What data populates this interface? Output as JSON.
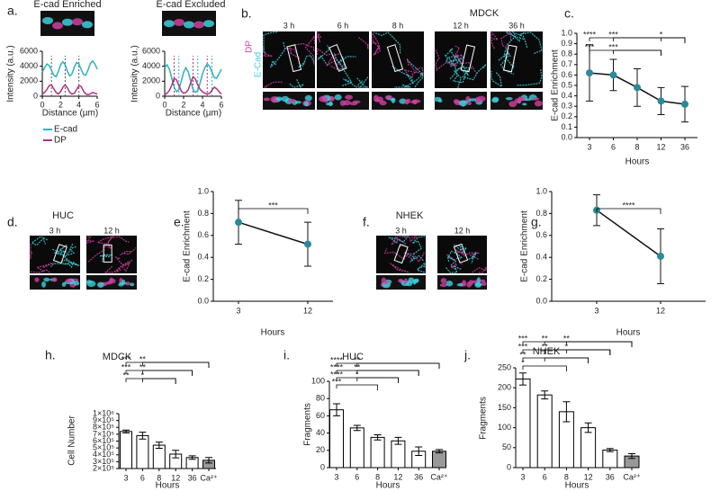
{
  "chart_data": [
    {
      "type": "line",
      "panel": "a.",
      "title": "E-cad Enriched",
      "x_label": "Distance (µm)",
      "y_label": "Intensity (a.u.)",
      "x": [
        0,
        0.25,
        0.5,
        0.75,
        1,
        1.25,
        1.5,
        1.75,
        2,
        2.25,
        2.5,
        2.75,
        3,
        3.25,
        3.5,
        3.75,
        4,
        4.25,
        4.5,
        4.75,
        5,
        5.25,
        5.5,
        5.75,
        6
      ],
      "series": [
        {
          "name": "E-cad",
          "color": "#2bb3c0",
          "values": [
            3200,
            3800,
            4300,
            4100,
            3500,
            2800,
            2600,
            3300,
            4200,
            4600,
            4200,
            3300,
            2700,
            3000,
            3900,
            4500,
            4300,
            3600,
            2900,
            2800,
            3500,
            4400,
            4700,
            4300,
            3600
          ]
        },
        {
          "name": "DP",
          "color": "#b2307e",
          "values": [
            300,
            500,
            900,
            1400,
            1500,
            1000,
            500,
            300,
            600,
            1200,
            1500,
            1100,
            500,
            300,
            400,
            900,
            1400,
            1300,
            700,
            300,
            200,
            300,
            500,
            400,
            300
          ]
        }
      ],
      "guides": [
        {
          "x": 1,
          "color": "#555555"
        },
        {
          "x": 2.5,
          "color": "#555555"
        },
        {
          "x": 4,
          "color": "#555555"
        }
      ],
      "xlim": [
        0,
        6
      ],
      "xticks": [
        0,
        2,
        4,
        6
      ],
      "ylim": [
        0,
        6000
      ],
      "yticks": [
        0,
        2000,
        4000,
        6000
      ]
    },
    {
      "type": "line",
      "title": "E-cad Excluded",
      "x_label": "Distance (µm)",
      "y_label": "Intensity (a.u.)",
      "x": [
        0,
        0.25,
        0.5,
        0.75,
        1,
        1.25,
        1.5,
        1.75,
        2,
        2.25,
        2.5,
        2.75,
        3,
        3.25,
        3.5,
        3.75,
        4,
        4.25,
        4.5,
        4.75,
        5,
        5.25,
        5.5,
        5.75,
        6
      ],
      "series": [
        {
          "color": "#2bb3c0",
          "values": [
            3800,
            4200,
            3600,
            2400,
            1200,
            600,
            900,
            2000,
            3200,
            3800,
            3200,
            2000,
            900,
            500,
            800,
            1800,
            3000,
            3800,
            4300,
            4000,
            3200,
            2500,
            2400,
            3000,
            3600
          ]
        },
        {
          "color": "#b2307e",
          "values": [
            200,
            400,
            800,
            1500,
            2400,
            2200,
            1400,
            700,
            400,
            500,
            900,
            1800,
            2600,
            2300,
            1500,
            900,
            600,
            400,
            300,
            400,
            800,
            1200,
            1000,
            600,
            300
          ]
        }
      ],
      "guides": [
        {
          "x": 1,
          "color": "#b2307e"
        },
        {
          "x": 1.5,
          "color": "#2bb3c0"
        },
        {
          "x": 3,
          "color": "#b2307e"
        },
        {
          "x": 3.5,
          "color": "#2bb3c0"
        },
        {
          "x": 4.5,
          "color": "#b2307e"
        },
        {
          "x": 5,
          "color": "#2bb3c0"
        }
      ],
      "xlim": [
        0,
        6
      ],
      "xticks": [
        0,
        2,
        4,
        6
      ],
      "ylim": [
        0,
        6000
      ],
      "yticks": [
        0,
        2000,
        4000,
        6000
      ]
    },
    {
      "type": "line",
      "panel": "c.",
      "x_label": "Hours",
      "y_label": "E-cad Enrichment",
      "color": "#2a8a9a",
      "categories": [
        "3",
        "6",
        "8",
        "12",
        "36"
      ],
      "values": [
        0.62,
        0.6,
        0.48,
        0.35,
        0.32
      ],
      "errors": [
        0.27,
        0.15,
        0.18,
        0.13,
        0.17
      ],
      "ylim": [
        0,
        1
      ],
      "yticks": [
        {
          "value": 0,
          "label": "0.0"
        },
        0.1,
        0.2,
        0.3,
        0.4,
        0.5,
        0.6,
        0.7,
        0.8,
        0.9,
        {
          "value": 1,
          "label": "1.0"
        }
      ],
      "annotations": [
        {
          "text": "****",
          "categories": [
            "3",
            "36"
          ]
        },
        {
          "text": "***",
          "categories": [
            "6",
            "36"
          ]
        },
        {
          "text": "*",
          "categories": [
            "12",
            "36"
          ]
        },
        {
          "text": "***",
          "categories": [
            "3",
            "12"
          ]
        },
        {
          "text": "***",
          "categories": [
            "6",
            "12"
          ]
        }
      ]
    },
    {
      "type": "line",
      "panel": "e.",
      "x_label": "Hours",
      "y_label": "E-cad Enrichment",
      "color": "#2a8a9a",
      "categories": [
        "3",
        "12"
      ],
      "values": [
        0.72,
        0.52
      ],
      "errors": [
        0.2,
        0.2
      ],
      "ylim": [
        0,
        1
      ],
      "yticks": [
        {
          "value": 0,
          "label": "0.0"
        },
        0.2,
        0.4,
        0.6,
        0.8,
        {
          "value": 1,
          "label": "1.0"
        }
      ],
      "annotations": [
        {
          "text": "***",
          "categories": [
            "3",
            "12"
          ]
        }
      ]
    },
    {
      "type": "line",
      "panel": "g.",
      "x_label": "Hours",
      "y_label": "E-cad Enrichment",
      "color": "#2a8a9a",
      "categories": [
        "3",
        "12"
      ],
      "values": [
        0.83,
        0.41
      ],
      "errors": [
        0.14,
        0.25
      ],
      "ylim": [
        0,
        1
      ],
      "yticks": [
        {
          "value": 0,
          "label": "0.0"
        },
        0.2,
        0.4,
        0.6,
        0.8,
        {
          "value": 1,
          "label": "1.0"
        }
      ],
      "annotations": [
        {
          "text": "****",
          "categories": [
            "3",
            "12"
          ]
        }
      ]
    },
    {
      "type": "bar",
      "panel": "h.",
      "title": "MDCK",
      "x_label": "Hours",
      "y_label": "Cell Number",
      "categories": [
        "3",
        "6",
        "8",
        "12",
        "36",
        "Ca²⁺"
      ],
      "values": [
        740000,
        680000,
        540000,
        410000,
        360000,
        320000
      ],
      "errors": [
        20000,
        50000,
        45000,
        55000,
        25000,
        40000
      ],
      "colors": [
        "#ffffff",
        "#ffffff",
        "#ffffff",
        "#ffffff",
        "#ffffff",
        "#999999"
      ],
      "ylim": [
        200000,
        1000000
      ],
      "yticks": [
        {
          "value": 200000,
          "label": "2×10⁵"
        },
        {
          "value": 300000,
          "label": "3×10⁵"
        },
        {
          "value": 400000,
          "label": "4×10⁵"
        },
        {
          "value": 500000,
          "label": "5×10⁵"
        },
        {
          "value": 600000,
          "label": "6×10⁵"
        },
        {
          "value": 700000,
          "label": "7×10⁵"
        },
        {
          "value": 800000,
          "label": "8×10⁵"
        },
        {
          "value": 900000,
          "label": "9×10⁵"
        },
        {
          "value": 1000000,
          "label": "1×10⁶"
        }
      ],
      "annotations": [
        {
          "text": "***",
          "categories": [
            "3",
            "Ca²⁺"
          ]
        },
        {
          "text": "**",
          "categories": [
            "6",
            "Ca²⁺"
          ]
        },
        {
          "text": "***",
          "categories": [
            "3",
            "36"
          ]
        },
        {
          "text": "**",
          "categories": [
            "6",
            "36"
          ]
        },
        {
          "text": "**",
          "categories": [
            "3",
            "12"
          ]
        },
        {
          "text": "*",
          "categories": [
            "6",
            "12"
          ]
        }
      ]
    },
    {
      "type": "bar",
      "panel": "i.",
      "title": "HUC",
      "x_label": "Hours",
      "y_label": "Fragments",
      "categories": [
        "3",
        "6",
        "8",
        "12",
        "36",
        "Ca²⁺"
      ],
      "values": [
        67,
        46,
        35,
        31,
        19,
        19
      ],
      "errors": [
        7,
        3,
        3,
        4,
        5,
        2
      ],
      "colors": [
        "#ffffff",
        "#ffffff",
        "#ffffff",
        "#ffffff",
        "#ffffff",
        "#999999"
      ],
      "ylim": [
        0,
        100
      ],
      "yticks": [
        0,
        20,
        40,
        60,
        80,
        100
      ],
      "annotations": [
        {
          "text": "****",
          "categories": [
            "3",
            "Ca²⁺"
          ]
        },
        {
          "text": "**",
          "categories": [
            "6",
            "Ca²⁺"
          ]
        },
        {
          "text": "****",
          "categories": [
            "3",
            "36"
          ]
        },
        {
          "text": "**",
          "categories": [
            "6",
            "36"
          ]
        },
        {
          "text": "****",
          "categories": [
            "3",
            "12"
          ]
        },
        {
          "text": "*",
          "categories": [
            "6",
            "12"
          ]
        },
        {
          "text": "***",
          "categories": [
            "3",
            "8"
          ]
        }
      ]
    },
    {
      "type": "bar",
      "panel": "j.",
      "title": "NHEK",
      "x_label": "Hours",
      "y_label": "Fragments",
      "categories": [
        "3",
        "6",
        "8",
        "12",
        "36",
        "Ca²⁺"
      ],
      "values": [
        222,
        182,
        140,
        100,
        44,
        29
      ],
      "errors": [
        15,
        10,
        25,
        12,
        4,
        6
      ],
      "colors": [
        "#ffffff",
        "#ffffff",
        "#ffffff",
        "#ffffff",
        "#ffffff",
        "#999999"
      ],
      "ylim": [
        0,
        250
      ],
      "yticks": [
        0,
        50,
        100,
        150,
        200,
        250
      ],
      "annotations": [
        {
          "text": "***",
          "categories": [
            "3",
            "Ca²⁺"
          ]
        },
        {
          "text": "**",
          "categories": [
            "6",
            "Ca²⁺"
          ]
        },
        {
          "text": "**",
          "categories": [
            "8",
            "Ca²⁺"
          ]
        },
        {
          "text": "***",
          "categories": [
            "3",
            "36"
          ]
        },
        {
          "text": "**",
          "categories": [
            "6",
            "36"
          ]
        },
        {
          "text": "*",
          "categories": [
            "8",
            "36"
          ]
        },
        {
          "text": "**",
          "categories": [
            "3",
            "12"
          ]
        },
        {
          "text": "*",
          "categories": [
            "6",
            "12"
          ]
        },
        {
          "text": "*",
          "categories": [
            "3",
            "8"
          ]
        }
      ]
    }
  ],
  "micrographs": [
    {
      "panel": "b.",
      "title": "MDCK",
      "channels": [
        "DP",
        "E-Cad"
      ],
      "timepoints": [
        "3 h",
        "6 h",
        "8 h",
        "12 h",
        "36 h"
      ]
    },
    {
      "panel": "d.",
      "title": "HUC",
      "timepoints": [
        "3 h",
        "12 h"
      ]
    },
    {
      "panel": "f.",
      "title": "NHEK",
      "timepoints": [
        "3 h",
        "12 h"
      ]
    }
  ]
}
